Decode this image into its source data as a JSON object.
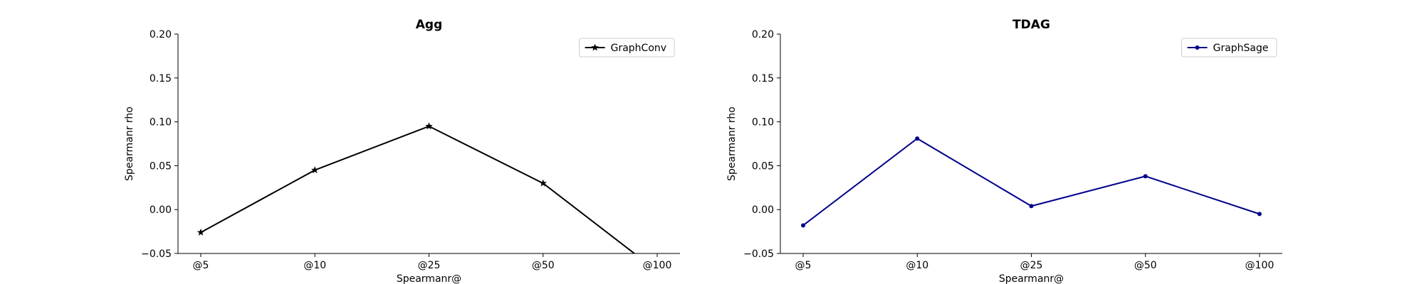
{
  "chart_data": [
    {
      "type": "line",
      "title": "Agg",
      "xlabel": "Spearmanr@",
      "ylabel": "Spearmanr rho",
      "categories": [
        "@5",
        "@10",
        "@25",
        "@50",
        "@100"
      ],
      "ylim": [
        -0.05,
        0.2
      ],
      "yticks": [
        "−0.05",
        "0.00",
        "0.05",
        "0.10",
        "0.15",
        "0.20"
      ],
      "ytick_values": [
        -0.05,
        0.0,
        0.05,
        0.1,
        0.15,
        0.2
      ],
      "grid": false,
      "legend_position": "top-right",
      "series": [
        {
          "name": "GraphConv",
          "color": "#000000",
          "marker": "star",
          "values": [
            -0.026,
            0.045,
            0.095,
            0.03,
            -0.07
          ]
        }
      ]
    },
    {
      "type": "line",
      "title": "TDAG",
      "xlabel": "Spearmanr@",
      "ylabel": "Spearmanr rho",
      "categories": [
        "@5",
        "@10",
        "@25",
        "@50",
        "@100"
      ],
      "ylim": [
        -0.05,
        0.2
      ],
      "yticks": [
        "−0.05",
        "0.00",
        "0.05",
        "0.10",
        "0.15",
        "0.20"
      ],
      "ytick_values": [
        -0.05,
        0.0,
        0.05,
        0.1,
        0.15,
        0.2
      ],
      "grid": false,
      "legend_position": "top-right",
      "series": [
        {
          "name": "GraphSage",
          "color": "#00008b",
          "marker": "dot",
          "values": [
            -0.018,
            0.081,
            0.004,
            0.038,
            -0.005
          ]
        }
      ]
    }
  ]
}
